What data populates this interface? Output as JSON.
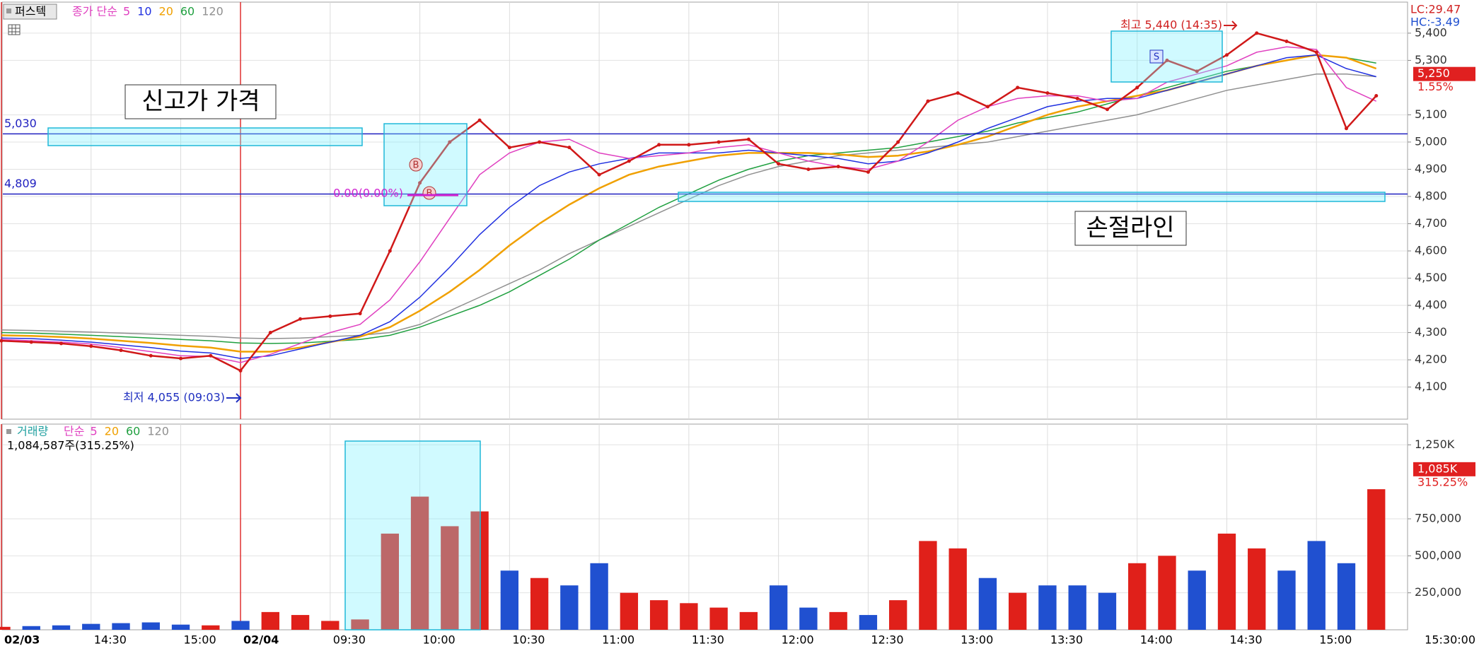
{
  "header": {
    "stock": "퍼스텍",
    "price_label": "종가 단순",
    "volume_label": "거래량",
    "volume_ma_label": "단순",
    "lc": "LC:29.47",
    "hc": "HC:-3.49",
    "volume_info": "1,084,587주(315.25%)",
    "time_end": "15:30:00"
  },
  "annotations": {
    "new_high": "신고가 가격",
    "stop_loss": "손절라인",
    "high": "최고 5,440 (14:35)",
    "low": "최저 4,055 (09:03)",
    "zero": "0.00(0.00%)",
    "buy1": "B",
    "buy2": "B",
    "sell": "S"
  },
  "chart_data": [
    {
      "type": "line",
      "categories": [
        "02/03",
        null,
        null,
        "14:30",
        null,
        null,
        "15:00",
        null,
        "02/04",
        null,
        null,
        "09:30",
        null,
        null,
        "10:00",
        null,
        null,
        "10:30",
        null,
        null,
        "11:00",
        null,
        null,
        "11:30",
        null,
        null,
        "12:00",
        null,
        null,
        "12:30",
        null,
        null,
        "13:00",
        null,
        null,
        "13:30",
        null,
        null,
        "14:00",
        null,
        null,
        "14:30",
        null,
        null,
        "15:00",
        null,
        null
      ],
      "values": [
        4270,
        4265,
        4260,
        4250,
        4235,
        4215,
        4205,
        4215,
        4160,
        4300,
        4350,
        4360,
        4370,
        4600,
        4850,
        5000,
        5080,
        4980,
        5000,
        4980,
        4880,
        4930,
        4990,
        4990,
        5000,
        5010,
        4920,
        4900,
        4910,
        4890,
        5000,
        5150,
        5180,
        5130,
        5200,
        5180,
        5160,
        5120,
        5200,
        5300,
        5260,
        5320,
        5400,
        5370,
        5330,
        5050,
        5170
      ],
      "color": "#d01818",
      "series": [
        {
          "name": "5",
          "color": "#e040c0",
          "values": [
            4275,
            4270,
            4265,
            4258,
            4245,
            4230,
            4215,
            4212,
            4190,
            4220,
            4260,
            4300,
            4330,
            4420,
            4560,
            4720,
            4880,
            4960,
            5000,
            5010,
            4960,
            4940,
            4950,
            4960,
            4980,
            4990,
            4960,
            4930,
            4910,
            4900,
            4930,
            5000,
            5080,
            5130,
            5160,
            5170,
            5170,
            5150,
            5160,
            5220,
            5250,
            5280,
            5330,
            5350,
            5340,
            5200,
            5150
          ]
        },
        {
          "name": "10",
          "color": "#2030e0",
          "values": [
            4280,
            4278,
            4272,
            4265,
            4255,
            4245,
            4232,
            4225,
            4205,
            4215,
            4240,
            4265,
            4290,
            4340,
            4430,
            4540,
            4660,
            4760,
            4840,
            4890,
            4920,
            4940,
            4960,
            4960,
            4960,
            4970,
            4960,
            4950,
            4940,
            4920,
            4930,
            4960,
            5000,
            5050,
            5090,
            5130,
            5150,
            5160,
            5160,
            5190,
            5220,
            5250,
            5280,
            5310,
            5320,
            5270,
            5240
          ]
        },
        {
          "name": "20",
          "color": "#f0a000",
          "values": [
            4290,
            4288,
            4284,
            4278,
            4270,
            4262,
            4252,
            4245,
            4230,
            4230,
            4245,
            4265,
            4285,
            4320,
            4380,
            4450,
            4530,
            4620,
            4700,
            4770,
            4830,
            4880,
            4910,
            4930,
            4950,
            4960,
            4960,
            4960,
            4955,
            4945,
            4950,
            4965,
            4990,
            5020,
            5060,
            5100,
            5130,
            5150,
            5170,
            5190,
            5220,
            5250,
            5280,
            5300,
            5320,
            5310,
            5270
          ]
        },
        {
          "name": "60",
          "color": "#20a040",
          "values": [
            4300,
            4298,
            4294,
            4290,
            4285,
            4280,
            4275,
            4270,
            4262,
            4260,
            4262,
            4268,
            4275,
            4290,
            4320,
            4360,
            4400,
            4450,
            4510,
            4570,
            4640,
            4700,
            4760,
            4810,
            4860,
            4900,
            4930,
            4950,
            4960,
            4970,
            4980,
            5000,
            5020,
            5040,
            5070,
            5090,
            5110,
            5140,
            5170,
            5200,
            5230,
            5260,
            5280,
            5300,
            5320,
            5310,
            5290
          ]
        },
        {
          "name": "120",
          "color": "#909090",
          "values": [
            4310,
            4308,
            4305,
            4302,
            4298,
            4294,
            4290,
            4286,
            4280,
            4278,
            4280,
            4285,
            4290,
            4300,
            4330,
            4380,
            4430,
            4480,
            4530,
            4590,
            4640,
            4690,
            4740,
            4790,
            4840,
            4880,
            4910,
            4930,
            4950,
            4960,
            4970,
            4980,
            4990,
            5000,
            5020,
            5040,
            5060,
            5080,
            5100,
            5130,
            5160,
            5190,
            5210,
            5230,
            5250,
            5250,
            5240
          ]
        }
      ],
      "ylim": [
        3982,
        5514
      ],
      "yticks": [
        {
          "value": 4100,
          "label": "4,100"
        },
        {
          "value": 4200,
          "label": "4,200"
        },
        {
          "value": 4300,
          "label": "4,300"
        },
        {
          "value": 4400,
          "label": "4,400"
        },
        {
          "value": 4500,
          "label": "4,500"
        },
        {
          "value": 4600,
          "label": "4,600"
        },
        {
          "value": 4700,
          "label": "4,700"
        },
        {
          "value": 4800,
          "label": "4,800"
        },
        {
          "value": 4900,
          "label": "4,900"
        },
        {
          "value": 5000,
          "label": "5,000"
        },
        {
          "value": 5100,
          "label": "5,100"
        },
        {
          "value": 5300,
          "label": "5,300"
        },
        {
          "value": 5400,
          "label": "5,400"
        }
      ],
      "hlines": [
        {
          "value": 5030,
          "label": "5,030"
        },
        {
          "value": 4809,
          "label": "4,809"
        }
      ],
      "last": {
        "value": 5250,
        "label": "5,250"
      },
      "change": "1.55%",
      "grid": true
    },
    {
      "type": "bar",
      "values": [
        20000,
        25000,
        30000,
        40000,
        45000,
        50000,
        35000,
        30000,
        60000,
        120000,
        100000,
        60000,
        70000,
        650000,
        900000,
        700000,
        800000,
        400000,
        350000,
        300000,
        450000,
        250000,
        200000,
        180000,
        150000,
        120000,
        300000,
        150000,
        120000,
        100000,
        200000,
        600000,
        550000,
        350000,
        250000,
        300000,
        300000,
        250000,
        450000,
        500000,
        400000,
        650000,
        550000,
        400000,
        600000,
        450000,
        950000
      ],
      "up_color": "#e0201a",
      "down_color": "#2050d0",
      "legend": [
        {
          "name": "5",
          "color": "#e040c0"
        },
        {
          "name": "20",
          "color": "#f0a000"
        },
        {
          "name": "60",
          "color": "#20a040"
        },
        {
          "name": "120",
          "color": "#909090"
        }
      ],
      "ylim": [
        0,
        1390000
      ],
      "yticks": [
        {
          "value": 250000,
          "label": "250,000"
        },
        {
          "value": 500000,
          "label": "500,000"
        },
        {
          "value": 750000,
          "label": "750,000"
        },
        {
          "value": 1250000,
          "label": "1,250K"
        }
      ],
      "last": {
        "value": 1085000,
        "label": "1,085K"
      },
      "change": "315.25%",
      "grid": true
    }
  ]
}
